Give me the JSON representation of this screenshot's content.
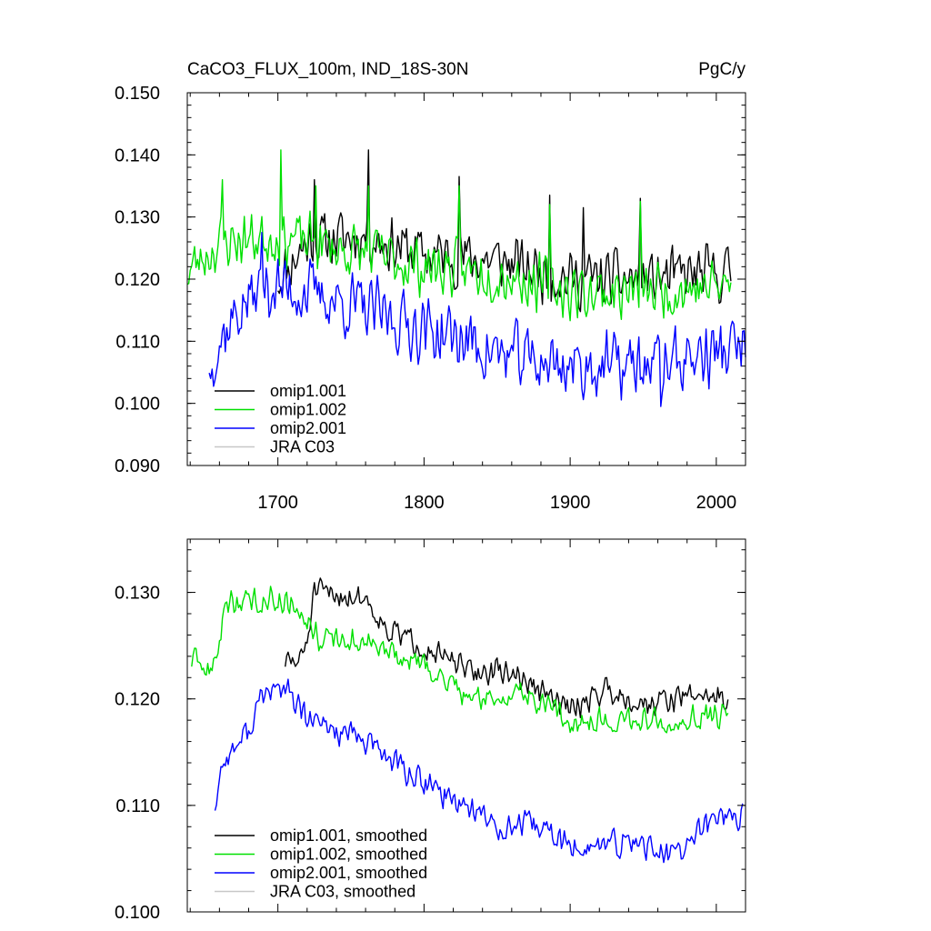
{
  "chart_data": [
    {
      "type": "line",
      "title": "CaCO3_FLUX_100m, IND_18S-30N",
      "units": "PgC/y",
      "xlim": [
        1638,
        2020
      ],
      "ylim": [
        0.09,
        0.15
      ],
      "xticks": [
        1700,
        1800,
        1900,
        2000
      ],
      "yticks": [
        "0.090",
        "0.100",
        "0.110",
        "0.120",
        "0.130",
        "0.140",
        "0.150"
      ],
      "legend_position": "lower-left",
      "series": [
        {
          "name": "omip1.001",
          "color": "#000000",
          "x_range": [
            1700,
            2010
          ],
          "seed": 11,
          "noise": 0.0055,
          "trend": [
            [
              1700,
              0.12
            ],
            [
              1720,
              0.126
            ],
            [
              1760,
              0.127
            ],
            [
              1800,
              0.124
            ],
            [
              1850,
              0.123
            ],
            [
              1900,
              0.12
            ],
            [
              1950,
              0.12
            ],
            [
              2010,
              0.121
            ]
          ],
          "spikes": [
            [
              1762,
              0.1408
            ],
            [
              1725,
              0.136
            ],
            [
              1824,
              0.1365
            ],
            [
              1948,
              0.133
            ],
            [
              1886,
              0.1335
            ],
            [
              1909,
              0.1315
            ]
          ]
        },
        {
          "name": "omip1.002",
          "color": "#00e000",
          "x_range": [
            1638,
            2010
          ],
          "seed": 23,
          "noise": 0.0055,
          "trend": [
            [
              1638,
              0.121
            ],
            [
              1660,
              0.126
            ],
            [
              1700,
              0.127
            ],
            [
              1720,
              0.126
            ],
            [
              1760,
              0.124
            ],
            [
              1800,
              0.122
            ],
            [
              1850,
              0.121
            ],
            [
              1900,
              0.118
            ],
            [
              1950,
              0.118
            ],
            [
              2010,
              0.119
            ]
          ],
          "spikes": [
            [
              1702,
              0.1408
            ],
            [
              1662,
              0.136
            ],
            [
              1762,
              0.135
            ],
            [
              1824,
              0.135
            ],
            [
              1948,
              0.1325
            ],
            [
              1886,
              0.132
            ],
            [
              1726,
              0.135
            ]
          ]
        },
        {
          "name": "omip2.001",
          "color": "#0000ff",
          "x_range": [
            1653,
            2020
          ],
          "seed": 37,
          "noise": 0.0065,
          "trend": [
            [
              1653,
              0.107
            ],
            [
              1670,
              0.114
            ],
            [
              1690,
              0.119
            ],
            [
              1720,
              0.118
            ],
            [
              1760,
              0.115
            ],
            [
              1800,
              0.112
            ],
            [
              1830,
              0.11
            ],
            [
              1850,
              0.108
            ],
            [
              1900,
              0.106
            ],
            [
              1950,
              0.106
            ],
            [
              2020,
              0.109
            ]
          ],
          "spikes": [
            [
              1689,
              0.1275
            ],
            [
              1654,
              0.104
            ],
            [
              1657,
              0.1038
            ],
            [
              1962,
              0.0995
            ]
          ]
        },
        {
          "name": "JRA C03",
          "color": "#c8c8c8",
          "x_range": null
        }
      ]
    },
    {
      "type": "line",
      "title": "",
      "xlim": [
        1638,
        2020
      ],
      "ylim": [
        0.1,
        0.135
      ],
      "xticks": [
        1700,
        1800,
        1900,
        2000
      ],
      "yticks": [
        "0.100",
        "0.110",
        "0.120",
        "0.130"
      ],
      "legend_position": "lower-left",
      "series": [
        {
          "name": "omip1.001, smoothed",
          "color": "#000000",
          "x_range": [
            1705,
            2008
          ],
          "seed": 51,
          "noise": 0.0015,
          "trend": [
            [
              1705,
              0.1235
            ],
            [
              1715,
              0.1235
            ],
            [
              1720,
              0.1255
            ],
            [
              1725,
              0.13
            ],
            [
              1760,
              0.1295
            ],
            [
              1775,
              0.1265
            ],
            [
              1800,
              0.125
            ],
            [
              1830,
              0.1225
            ],
            [
              1860,
              0.1225
            ],
            [
              1875,
              0.121
            ],
            [
              1900,
              0.119
            ],
            [
              1925,
              0.121
            ],
            [
              1950,
              0.1195
            ],
            [
              1990,
              0.1205
            ],
            [
              2008,
              0.12
            ]
          ]
        },
        {
          "name": "omip1.002, smoothed",
          "color": "#00e000",
          "x_range": [
            1641,
            2008
          ],
          "seed": 63,
          "noise": 0.0015,
          "trend": [
            [
              1641,
              0.1235
            ],
            [
              1655,
              0.1225
            ],
            [
              1665,
              0.129
            ],
            [
              1700,
              0.1295
            ],
            [
              1715,
              0.1285
            ],
            [
              1730,
              0.1255
            ],
            [
              1760,
              0.1255
            ],
            [
              1780,
              0.124
            ],
            [
              1800,
              0.123
            ],
            [
              1835,
              0.12
            ],
            [
              1870,
              0.1205
            ],
            [
              1900,
              0.118
            ],
            [
              1950,
              0.118
            ],
            [
              2008,
              0.1185
            ]
          ]
        },
        {
          "name": "omip2.001, smoothed",
          "color": "#0000ff",
          "x_range": [
            1657,
            2018
          ],
          "seed": 77,
          "noise": 0.0016,
          "trend": [
            [
              1657,
              0.11
            ],
            [
              1662,
              0.114
            ],
            [
              1680,
              0.117
            ],
            [
              1690,
              0.1205
            ],
            [
              1705,
              0.121
            ],
            [
              1720,
              0.118
            ],
            [
              1760,
              0.116
            ],
            [
              1800,
              0.112
            ],
            [
              1830,
              0.11
            ],
            [
              1850,
              0.108
            ],
            [
              1880,
              0.108
            ],
            [
              1900,
              0.106
            ],
            [
              1950,
              0.1065
            ],
            [
              1970,
              0.105
            ],
            [
              2000,
              0.109
            ],
            [
              2018,
              0.109
            ]
          ]
        },
        {
          "name": "JRA C03, smoothed",
          "color": "#c8c8c8",
          "x_range": null
        }
      ]
    }
  ]
}
